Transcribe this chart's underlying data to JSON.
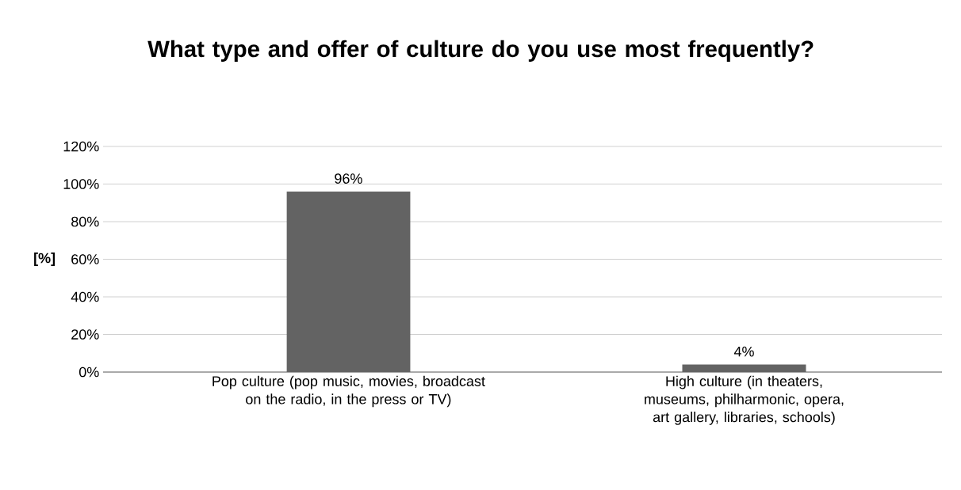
{
  "chart_data": {
    "type": "bar",
    "title": "What type and offer of culture do you use most frequently?",
    "ylabel": "[%]",
    "categories": [
      "Pop culture (pop music, movies, broadcast on the radio, in the press or TV)",
      "High culture (in theaters, museums, philharmonic, opera, art gallery, libraries, schools)"
    ],
    "values": [
      96,
      4
    ],
    "value_labels": [
      "96%",
      "4%"
    ],
    "color": "#636363",
    "ylim": [
      0,
      120
    ],
    "yticks": [
      {
        "value": 0,
        "label": "0%"
      },
      {
        "value": 20,
        "label": "20%"
      },
      {
        "value": 40,
        "label": "40%"
      },
      {
        "value": 60,
        "label": "60%"
      },
      {
        "value": 80,
        "label": "80%"
      },
      {
        "value": 100,
        "label": "100%"
      },
      {
        "value": 120,
        "label": "120%"
      }
    ],
    "grid": "y"
  }
}
